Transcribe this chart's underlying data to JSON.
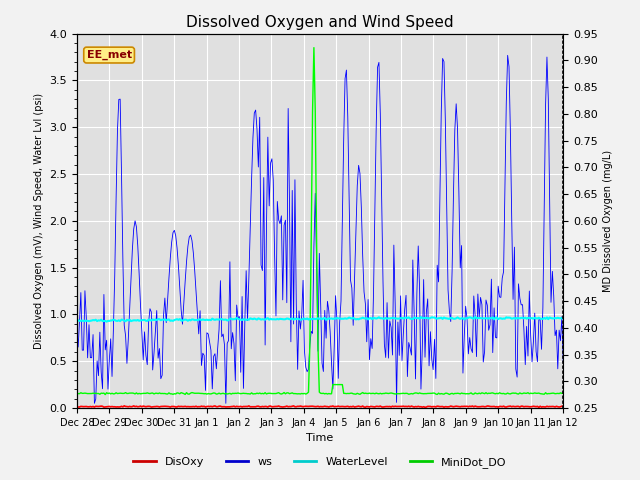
{
  "title": "Dissolved Oxygen and Wind Speed",
  "xlabel": "Time",
  "ylabel_left": "Dissolved Oxygen (mV), Wind Speed, Water Lvl (psi)",
  "ylabel_right": "MD Dissolved Oxygen (mg/L)",
  "ylim_left": [
    0.0,
    4.0
  ],
  "ylim_right": [
    0.25,
    0.95
  ],
  "fig_bg_color": "#f2f2f2",
  "plot_bg_color": "#e0e0e0",
  "legend_items": [
    "DisOxy",
    "ws",
    "WaterLevel",
    "MiniDot_DO"
  ],
  "legend_colors": [
    "#cc0000",
    "#0000cc",
    "#00cccc",
    "#00cc00"
  ],
  "annotation_text": "EE_met",
  "annotation_box_color": "#ffee88",
  "annotation_box_edge": "#cc8800",
  "annotation_text_color": "#880000",
  "title_fontsize": 11,
  "tick_label_fontsize": 7,
  "axis_label_fontsize": 8
}
